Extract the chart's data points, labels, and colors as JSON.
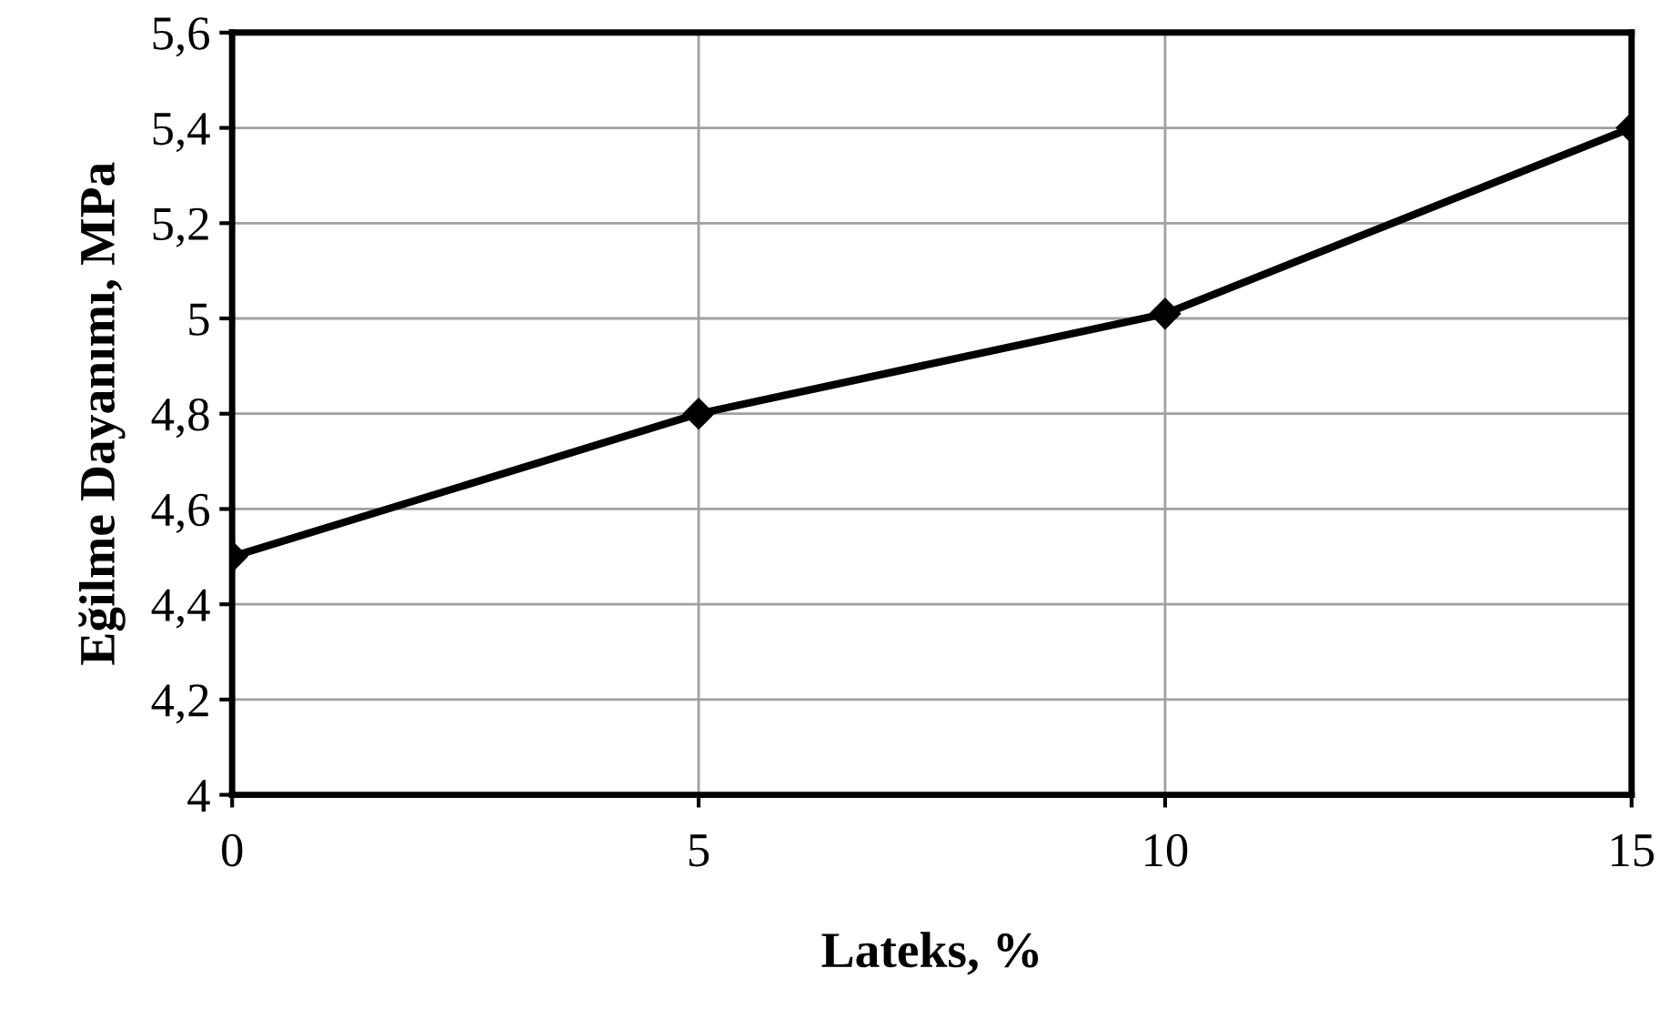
{
  "chart_data": {
    "type": "line",
    "xlabel": "Lateks, %",
    "ylabel": "Eğilme Dayanımı, MPa",
    "x": [
      0,
      5,
      10,
      15
    ],
    "series": [
      {
        "color": "#000000",
        "values": [
          4.5,
          4.8,
          5.01,
          5.4
        ]
      }
    ],
    "xlim": [
      0,
      15
    ],
    "xticks": [
      0,
      5,
      10,
      15
    ],
    "ylim": [
      4,
      5.6
    ],
    "yticks": [
      4,
      {
        "value": 4.2,
        "label": "4,2"
      },
      {
        "value": 4.4,
        "label": "4,4"
      },
      {
        "value": 4.6,
        "label": "4,6"
      },
      {
        "value": 4.8,
        "label": "4,8"
      },
      5,
      {
        "value": 5.2,
        "label": "5,2"
      },
      {
        "value": 5.4,
        "label": "5,4"
      },
      {
        "value": 5.6,
        "label": "5,6"
      }
    ],
    "grid": true,
    "marker": "diamond",
    "line_style": "solid"
  }
}
